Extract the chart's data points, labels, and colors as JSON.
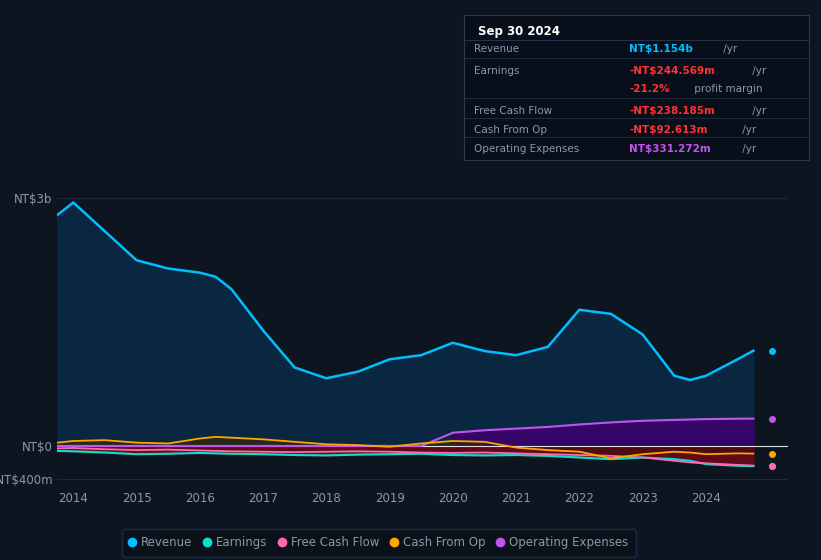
{
  "background_color": "#0d1520",
  "plot_bg_color": "#0d1520",
  "years": [
    2013.75,
    2014.0,
    2014.5,
    2015.0,
    2015.5,
    2016.0,
    2016.25,
    2016.5,
    2017.0,
    2017.5,
    2018.0,
    2018.5,
    2019.0,
    2019.5,
    2020.0,
    2020.5,
    2021.0,
    2021.5,
    2022.0,
    2022.5,
    2023.0,
    2023.5,
    2023.75,
    2024.0,
    2024.5,
    2024.75
  ],
  "revenue": [
    2800,
    2950,
    2600,
    2250,
    2150,
    2100,
    2050,
    1900,
    1400,
    950,
    820,
    900,
    1050,
    1100,
    1250,
    1150,
    1100,
    1200,
    1650,
    1600,
    1350,
    850,
    800,
    850,
    1050,
    1154
  ],
  "earnings": [
    -60,
    -65,
    -80,
    -100,
    -95,
    -85,
    -90,
    -95,
    -100,
    -110,
    -115,
    -105,
    -100,
    -95,
    -110,
    -115,
    -110,
    -120,
    -140,
    -160,
    -140,
    -160,
    -180,
    -220,
    -240,
    -245
  ],
  "free_cash_flow": [
    -30,
    -25,
    -40,
    -50,
    -45,
    -55,
    -60,
    -65,
    -70,
    -75,
    -70,
    -65,
    -70,
    -80,
    -85,
    -80,
    -90,
    -100,
    -110,
    -120,
    -140,
    -180,
    -200,
    -210,
    -230,
    -238
  ],
  "cash_from_op": [
    40,
    60,
    70,
    40,
    30,
    90,
    110,
    100,
    80,
    50,
    20,
    10,
    -10,
    30,
    60,
    50,
    -20,
    -50,
    -70,
    -150,
    -100,
    -70,
    -80,
    -100,
    -90,
    -93
  ],
  "operating_expenses": [
    0,
    0,
    0,
    0,
    0,
    0,
    0,
    0,
    0,
    0,
    0,
    0,
    0,
    0,
    160,
    190,
    210,
    230,
    260,
    285,
    305,
    315,
    320,
    325,
    330,
    331
  ],
  "revenue_color": "#00bfff",
  "revenue_fill_color": "#0a2a45",
  "earnings_color": "#00e5cc",
  "free_cash_flow_color": "#ff69b4",
  "cash_from_op_color": "#ffa500",
  "operating_expenses_color": "#bf55ec",
  "operating_expenses_fill_color": "#3d0070",
  "dark_fill": "#8b1020",
  "grid_color": "#1a3050",
  "zero_line_color": "#e0e0e0",
  "text_color": "#8899aa",
  "yticks_labels": [
    "NT$3b",
    "NT$0",
    "-NT$400m"
  ],
  "yticks_values": [
    3000,
    0,
    -400
  ],
  "xticks": [
    2014,
    2015,
    2016,
    2017,
    2018,
    2019,
    2020,
    2021,
    2022,
    2023,
    2024
  ],
  "annotation_box": {
    "title": "Sep 30 2024",
    "rows": [
      {
        "label": "Revenue",
        "value": "NT$1.154b",
        "suffix": " /yr",
        "value_color": "#00bfff"
      },
      {
        "label": "Earnings",
        "value": "-NT$244.569m",
        "suffix": " /yr",
        "value_color": "#ff3333"
      },
      {
        "label": "",
        "value": "-21.2%",
        "suffix": " profit margin",
        "value_color": "#ff3333"
      },
      {
        "label": "Free Cash Flow",
        "value": "-NT$238.185m",
        "suffix": " /yr",
        "value_color": "#ff3333"
      },
      {
        "label": "Cash From Op",
        "value": "-NT$92.613m",
        "suffix": " /yr",
        "value_color": "#ff3333"
      },
      {
        "label": "Operating Expenses",
        "value": "NT$331.272m",
        "suffix": " /yr",
        "value_color": "#bf55ec"
      }
    ],
    "bg_color": "#080f1a",
    "border_color": "#2a3a50",
    "title_color": "#ffffff",
    "label_color": "#8899aa"
  },
  "legend_items": [
    {
      "label": "Revenue",
      "color": "#00bfff"
    },
    {
      "label": "Earnings",
      "color": "#00e5cc"
    },
    {
      "label": "Free Cash Flow",
      "color": "#ff69b4"
    },
    {
      "label": "Cash From Op",
      "color": "#ffa500"
    },
    {
      "label": "Operating Expenses",
      "color": "#bf55ec"
    }
  ]
}
